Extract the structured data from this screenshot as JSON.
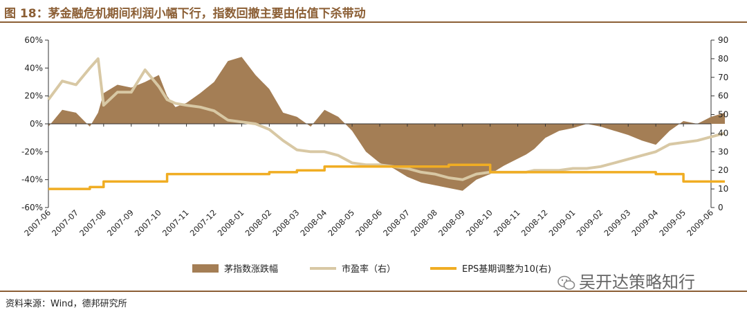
{
  "title": "图 18：茅金融危机期间利润小幅下行，指数回撤主要由估值下杀带动",
  "source": "资料来源：Wind，德邦研究所",
  "watermark": "吴开达策略知行",
  "colors": {
    "area": "#A47E55",
    "pe": "#D8C8A4",
    "eps": "#F0AD23",
    "brand": "#8B5E34"
  },
  "chart_data": {
    "type": "area",
    "x_tick_labels": [
      "2007-06",
      "2007-07",
      "2007-08",
      "2007-09",
      "2007-10",
      "2007-11",
      "2007-12",
      "2008-01",
      "2008-02",
      "2008-03",
      "2008-04",
      "2008-05",
      "2008-06",
      "2008-07",
      "2008-08",
      "2008-09",
      "2008-10",
      "2008-11",
      "2008-12",
      "2009-01",
      "2009-02",
      "2009-03",
      "2009-04",
      "2009-05",
      "2009-06"
    ],
    "y_left": {
      "ticks": [
        "-60%",
        "-40%",
        "-20%",
        "0%",
        "20%",
        "40%",
        "60%"
      ],
      "range": [
        -60,
        60
      ]
    },
    "y_right": {
      "ticks": [
        "0",
        "10",
        "20",
        "30",
        "40",
        "50",
        "60",
        "70",
        "80",
        "90"
      ],
      "range": [
        0,
        90
      ]
    },
    "legend": {
      "area": "茅指数涨跌幅",
      "pe": "市盈率（右）",
      "eps": "EPS基期调整为10(右)"
    },
    "x": [
      0,
      0.5,
      1,
      1.5,
      1.8,
      2,
      2.5,
      3,
      3.5,
      4,
      4.3,
      4.6,
      5,
      5.5,
      6,
      6.5,
      7,
      7.5,
      8,
      8.5,
      9,
      9.5,
      10,
      10.5,
      11,
      11.5,
      12,
      12.5,
      13,
      13.5,
      14,
      14.5,
      15,
      15.5,
      16,
      16.5,
      17,
      17.3,
      17.6,
      18,
      18.5,
      19,
      19.5,
      20,
      20.5,
      21,
      21.5,
      22,
      22.5,
      23,
      23.5,
      24,
      24.5
    ],
    "series": [
      {
        "name": "茅指数涨跌幅",
        "unit": "%",
        "values": [
          -2,
          10,
          8,
          -2,
          8,
          22,
          28,
          26,
          30,
          35,
          20,
          12,
          15,
          22,
          30,
          45,
          48,
          35,
          25,
          8,
          5,
          -2,
          10,
          5,
          -5,
          -20,
          -28,
          -32,
          -38,
          -42,
          -44,
          -46,
          -48,
          -40,
          -36,
          -30,
          -25,
          -22,
          -18,
          -10,
          -5,
          -3,
          0,
          -2,
          -5,
          -8,
          -12,
          -15,
          -5,
          2,
          0,
          5,
          8
        ]
      },
      {
        "name": "市盈率（右）",
        "unit": "x",
        "values": [
          58,
          68,
          66,
          75,
          80,
          55,
          62,
          62,
          74,
          65,
          58,
          56,
          55,
          54,
          52,
          47,
          46,
          45,
          42,
          36,
          31,
          30,
          30,
          28,
          24,
          23,
          23,
          22,
          21,
          19,
          18,
          16,
          15,
          18,
          19,
          19,
          19,
          19,
          20,
          20,
          20,
          21,
          21,
          22,
          24,
          26,
          28,
          30,
          34,
          35,
          36,
          38,
          40
        ]
      },
      {
        "name": "EPS基期调整为10(右)",
        "unit": "x",
        "values": [
          10,
          10,
          10,
          11,
          11,
          14,
          14,
          14,
          14,
          14,
          18,
          18,
          18,
          18,
          18,
          18,
          18,
          18,
          19,
          19,
          20,
          20,
          22,
          22,
          22,
          22,
          22,
          22,
          22,
          22,
          22,
          23,
          23,
          23,
          19,
          19,
          19,
          19,
          19,
          19,
          19,
          19,
          19,
          19,
          19,
          19,
          19,
          18,
          18,
          14,
          14,
          14,
          14
        ]
      }
    ]
  }
}
